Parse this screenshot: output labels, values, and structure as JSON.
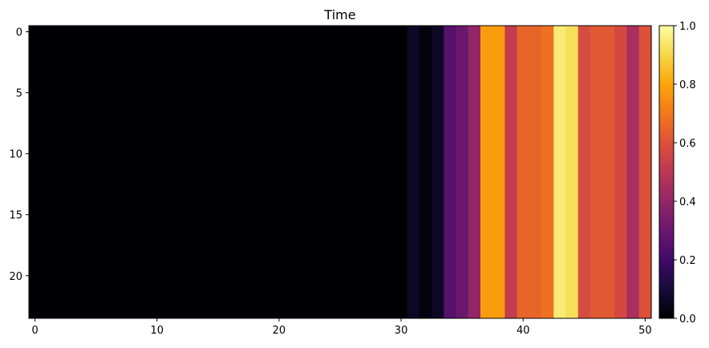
{
  "chart_data": {
    "type": "heatmap",
    "title": "Time",
    "xlabel": "",
    "ylabel": "",
    "colormap": "inferno",
    "rows": 24,
    "columns": 51,
    "column_values": [
      0,
      0,
      0,
      0,
      0,
      0,
      0,
      0,
      0,
      0,
      0,
      0,
      0,
      0,
      0,
      0,
      0,
      0,
      0,
      0,
      0,
      0,
      0,
      0,
      0,
      0,
      0,
      0,
      0,
      0,
      0,
      0.06,
      0.02,
      0.06,
      0.25,
      0.3,
      0.4,
      0.78,
      0.78,
      0.52,
      0.65,
      0.65,
      0.68,
      0.95,
      0.92,
      0.58,
      0.62,
      0.62,
      0.57,
      0.45,
      0.6
    ],
    "xlim": [
      -0.5,
      50.5
    ],
    "ylim": [
      23.5,
      -0.5
    ],
    "x_ticks": [
      0,
      10,
      20,
      30,
      40,
      50
    ],
    "x_tick_labels": [
      "0",
      "10",
      "20",
      "30",
      "40",
      "50"
    ],
    "y_ticks": [
      0,
      5,
      10,
      15,
      20
    ],
    "y_tick_labels": [
      "0",
      "5",
      "10",
      "15",
      "20"
    ],
    "colorbar": {
      "range": [
        0.0,
        1.0
      ],
      "ticks": [
        0.0,
        0.2,
        0.4,
        0.6,
        0.8,
        1.0
      ],
      "tick_labels": [
        "0.0",
        "0.2",
        "0.4",
        "0.6",
        "0.8",
        "1.0"
      ]
    },
    "grid": false
  }
}
